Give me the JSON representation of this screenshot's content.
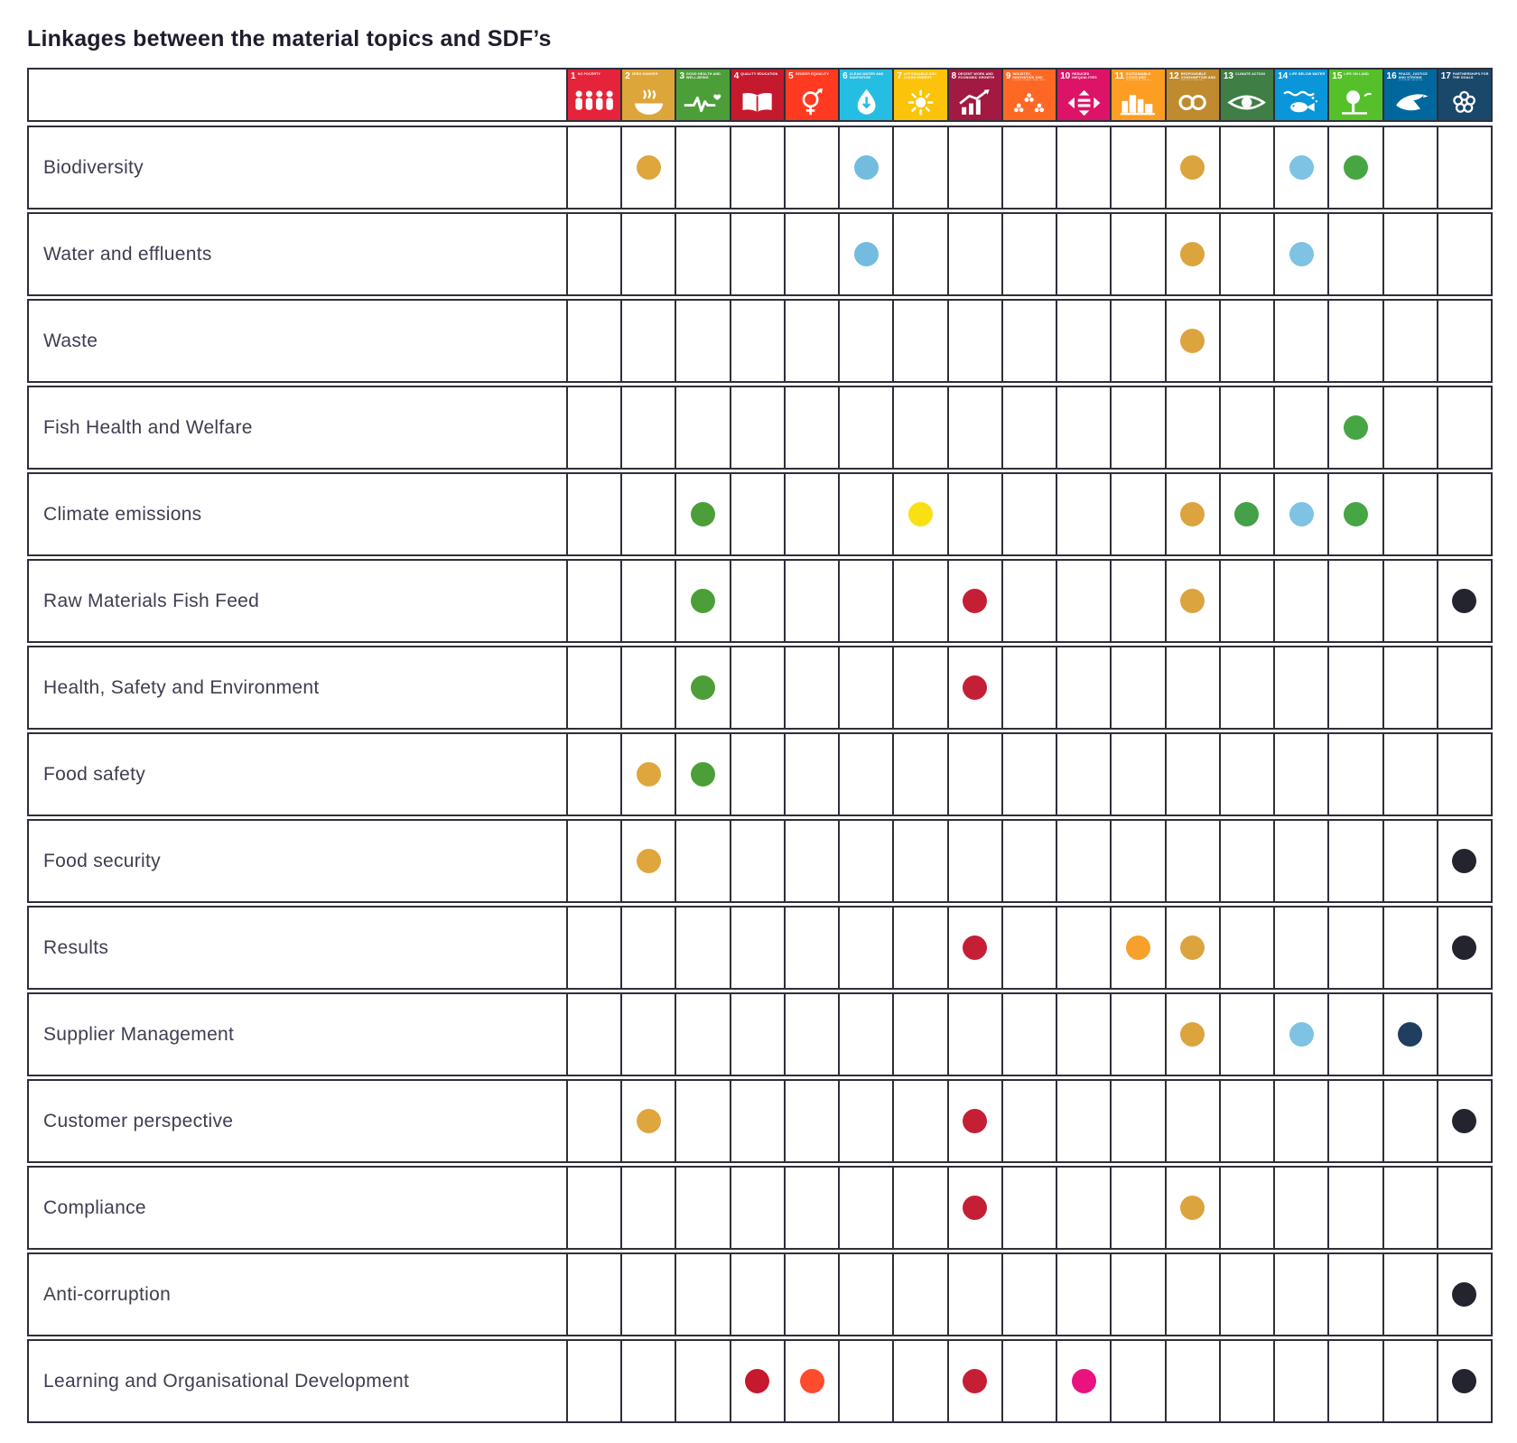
{
  "title": "Linkages between the material topics and SDF’s",
  "colors": {
    "background": "#FFFFFF",
    "grid_line": "#2F2F3A",
    "title_text": "#1D1D2E",
    "label_text": "#3E3E52"
  },
  "chart_data": {
    "type": "table",
    "title": "Linkages between the material topics and SDF’s",
    "description": "Matrix of material topics (rows) linked to UN Sustainable Development Goals 1-17 (columns); a colored dot marks a linkage, dot color follows the SDG column color.",
    "columns": [
      {
        "num": "1",
        "label": "No poverty",
        "color": "#E5243B",
        "dot_color": "#E5243B",
        "icon": "sdg1-people-icon"
      },
      {
        "num": "2",
        "label": "Zero hunger",
        "color": "#DDA63A",
        "dot_color": "#DFA63E",
        "icon": "sdg2-bowl-icon"
      },
      {
        "num": "3",
        "label": "Good health and well-being",
        "color": "#4C9F38",
        "dot_color": "#4C9F38",
        "icon": "sdg3-heartbeat-icon"
      },
      {
        "num": "4",
        "label": "Quality education",
        "color": "#C5192D",
        "dot_color": "#C5192D",
        "icon": "sdg4-book-icon"
      },
      {
        "num": "5",
        "label": "Gender equality",
        "color": "#FF3A21",
        "dot_color": "#FF4B2E",
        "icon": "sdg5-gender-icon"
      },
      {
        "num": "6",
        "label": "Clean water and sanitation",
        "color": "#26BDE2",
        "dot_color": "#74BCDF",
        "icon": "sdg6-water-icon"
      },
      {
        "num": "7",
        "label": "Affordable and clean energy",
        "color": "#FCC30B",
        "dot_color": "#F8E013",
        "icon": "sdg7-sun-icon"
      },
      {
        "num": "8",
        "label": "Decent work and economic growth",
        "color": "#A21942",
        "dot_color": "#C51F35",
        "icon": "sdg8-growth-icon"
      },
      {
        "num": "9",
        "label": "Industry, innovation and infrastructure",
        "color": "#FD6925",
        "dot_color": "#FD6925",
        "icon": "sdg9-industry-icon"
      },
      {
        "num": "10",
        "label": "Reduced inequalities",
        "color": "#DD1367",
        "dot_color": "#E8137F",
        "icon": "sdg10-equality-icon"
      },
      {
        "num": "11",
        "label": "Sustainable cities and communities",
        "color": "#FD9D24",
        "dot_color": "#F7A02C",
        "icon": "sdg11-city-icon"
      },
      {
        "num": "12",
        "label": "Responsible consumption and production",
        "color": "#BF8B2E",
        "dot_color": "#DCA43E",
        "icon": "sdg12-infinity-icon"
      },
      {
        "num": "13",
        "label": "Climate action",
        "color": "#3F7E44",
        "dot_color": "#44A049",
        "icon": "sdg13-eye-icon"
      },
      {
        "num": "14",
        "label": "Life below water",
        "color": "#0A97D9",
        "dot_color": "#7EC2E4",
        "icon": "sdg14-fish-icon"
      },
      {
        "num": "15",
        "label": "Life on land",
        "color": "#56C02B",
        "dot_color": "#45A643",
        "icon": "sdg15-tree-icon"
      },
      {
        "num": "16",
        "label": "Peace, justice and strong institutions",
        "color": "#00689D",
        "dot_color": "#1F3E60",
        "icon": "sdg16-dove-icon"
      },
      {
        "num": "17",
        "label": "Partnerships for the goals",
        "color": "#19486A",
        "dot_color": "#23242E",
        "icon": "sdg17-partnership-icon"
      }
    ],
    "rows": [
      {
        "label": "Biodiversity",
        "dots": [
          2,
          6,
          12,
          14,
          15
        ]
      },
      {
        "label": "Water and effluents",
        "dots": [
          6,
          12,
          14
        ]
      },
      {
        "label": "Waste",
        "dots": [
          12
        ]
      },
      {
        "label": "Fish Health and Welfare",
        "dots": [
          15
        ]
      },
      {
        "label": "Climate emissions",
        "dots": [
          3,
          7,
          12,
          13,
          14,
          15
        ]
      },
      {
        "label": "Raw Materials Fish Feed",
        "dots": [
          3,
          8,
          12,
          17
        ]
      },
      {
        "label": "Health, Safety and Environment",
        "dots": [
          3,
          8
        ]
      },
      {
        "label": "Food safety",
        "dots": [
          2,
          3
        ]
      },
      {
        "label": "Food security",
        "dots": [
          2,
          17
        ]
      },
      {
        "label": "Results",
        "dots": [
          8,
          11,
          12,
          17
        ]
      },
      {
        "label": "Supplier Management",
        "dots": [
          12,
          14,
          16
        ]
      },
      {
        "label": "Customer perspective",
        "dots": [
          2,
          8,
          17
        ]
      },
      {
        "label": "Compliance",
        "dots": [
          8,
          12
        ]
      },
      {
        "label": "Anti-corruption",
        "dots": [
          17
        ]
      },
      {
        "label": "Learning and Organisational Development",
        "dots": [
          4,
          5,
          8,
          10,
          17
        ]
      }
    ]
  }
}
